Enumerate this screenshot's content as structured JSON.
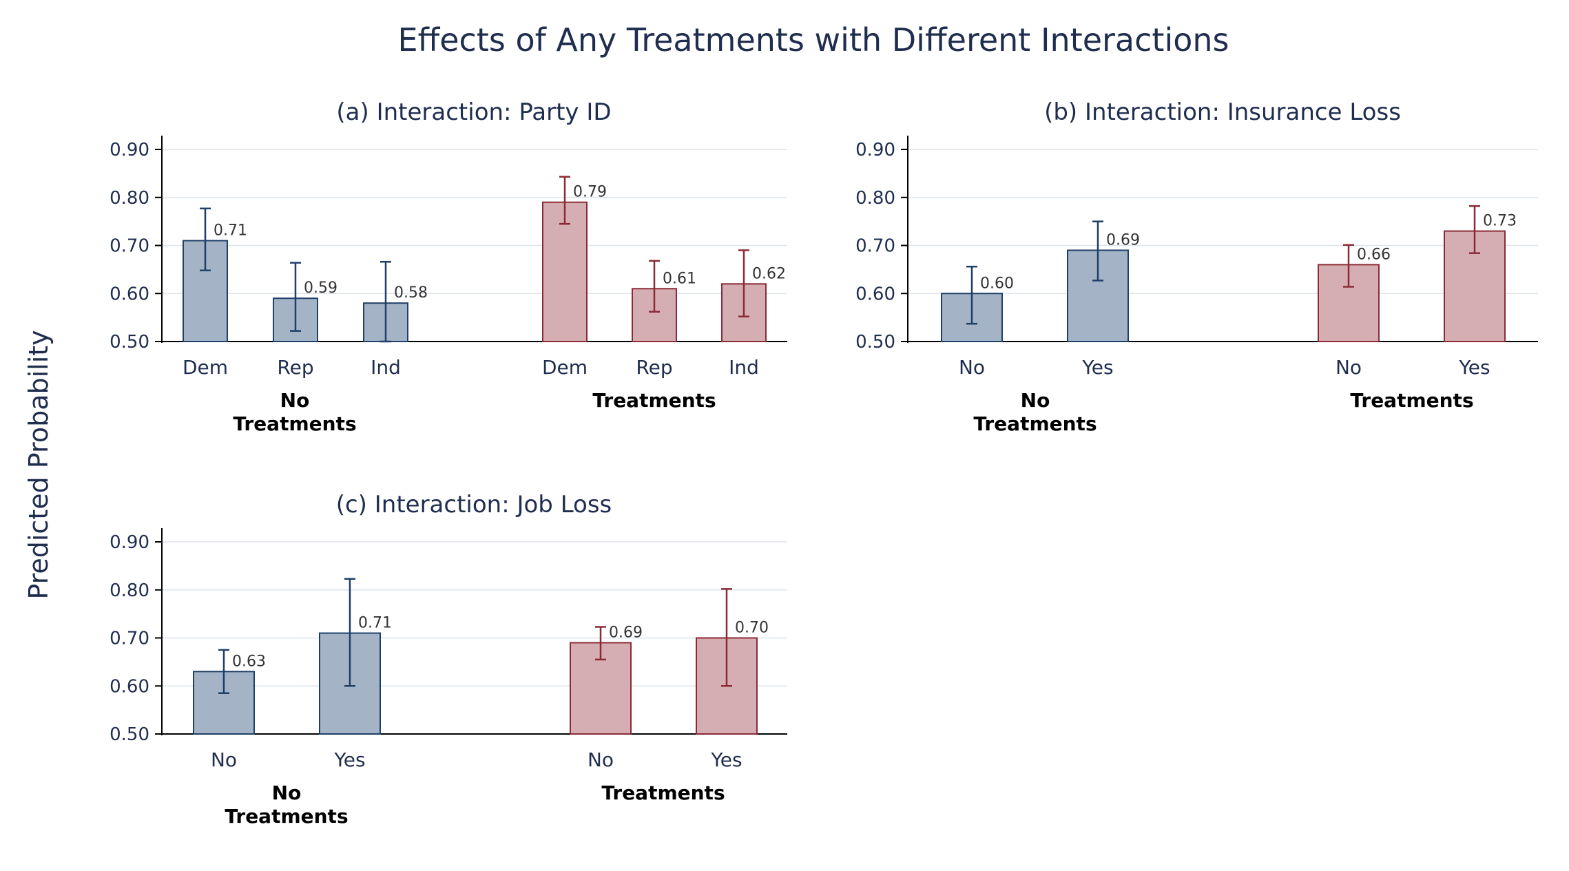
{
  "title": "Effects of Any Treatments with Different Interactions",
  "ylabel": "Predicted Probability",
  "colors": {
    "no_treatment_fill": "#a4b4c6",
    "no_treatment_stroke": "#1e3f66",
    "treatment_fill": "#d4aeb2",
    "treatment_stroke": "#8b2a36",
    "title_color": "#1f2d4f"
  },
  "chart_data": [
    {
      "type": "bar",
      "title": "(a) Interaction: Party ID",
      "ylim": [
        0.5,
        0.9
      ],
      "yticks": [
        "0.90",
        "0.80",
        "0.70",
        "0.60",
        "0.50"
      ],
      "grid": true,
      "groups": [
        {
          "label_lines": [
            "No",
            "Treatments"
          ],
          "categories": [
            "Dem",
            "Rep",
            "Ind"
          ],
          "values": [
            0.71,
            0.59,
            0.58
          ],
          "labels": [
            "0.71",
            "0.59",
            "0.58"
          ],
          "ci_low": [
            0.648,
            0.522,
            0.5
          ],
          "ci_high": [
            0.777,
            0.664,
            0.666
          ]
        },
        {
          "label_lines": [
            "Treatments"
          ],
          "categories": [
            "Dem",
            "Rep",
            "Ind"
          ],
          "values": [
            0.79,
            0.61,
            0.62
          ],
          "labels": [
            "0.79",
            "0.61",
            "0.62"
          ],
          "ci_low": [
            0.745,
            0.562,
            0.552
          ],
          "ci_high": [
            0.843,
            0.668,
            0.69
          ]
        }
      ]
    },
    {
      "type": "bar",
      "title": "(b) Interaction: Insurance Loss",
      "ylim": [
        0.5,
        0.9
      ],
      "yticks": [
        "0.90",
        "0.80",
        "0.70",
        "0.60",
        "0.50"
      ],
      "grid": true,
      "groups": [
        {
          "label_lines": [
            "No",
            "Treatments"
          ],
          "categories": [
            "No",
            "Yes"
          ],
          "values": [
            0.6,
            0.69
          ],
          "labels": [
            "0.60",
            "0.69"
          ],
          "ci_low": [
            0.537,
            0.627
          ],
          "ci_high": [
            0.656,
            0.75
          ]
        },
        {
          "label_lines": [
            "Treatments"
          ],
          "categories": [
            "No",
            "Yes"
          ],
          "values": [
            0.66,
            0.73
          ],
          "labels": [
            "0.66",
            "0.73"
          ],
          "ci_low": [
            0.614,
            0.684
          ],
          "ci_high": [
            0.701,
            0.782
          ]
        }
      ]
    },
    {
      "type": "bar",
      "title": "(c) Interaction: Job Loss",
      "ylim": [
        0.5,
        0.9
      ],
      "yticks": [
        "0.90",
        "0.80",
        "0.70",
        "0.60",
        "0.50"
      ],
      "grid": true,
      "groups": [
        {
          "label_lines": [
            "No",
            "Treatments"
          ],
          "categories": [
            "No",
            "Yes"
          ],
          "values": [
            0.63,
            0.71
          ],
          "labels": [
            "0.63",
            "0.71"
          ],
          "ci_low": [
            0.585,
            0.6
          ],
          "ci_high": [
            0.675,
            0.823
          ]
        },
        {
          "label_lines": [
            "Treatments"
          ],
          "categories": [
            "No",
            "Yes"
          ],
          "values": [
            0.69,
            0.7
          ],
          "labels": [
            "0.69",
            "0.70"
          ],
          "ci_low": [
            0.655,
            0.6
          ],
          "ci_high": [
            0.723,
            0.802
          ]
        }
      ]
    }
  ]
}
